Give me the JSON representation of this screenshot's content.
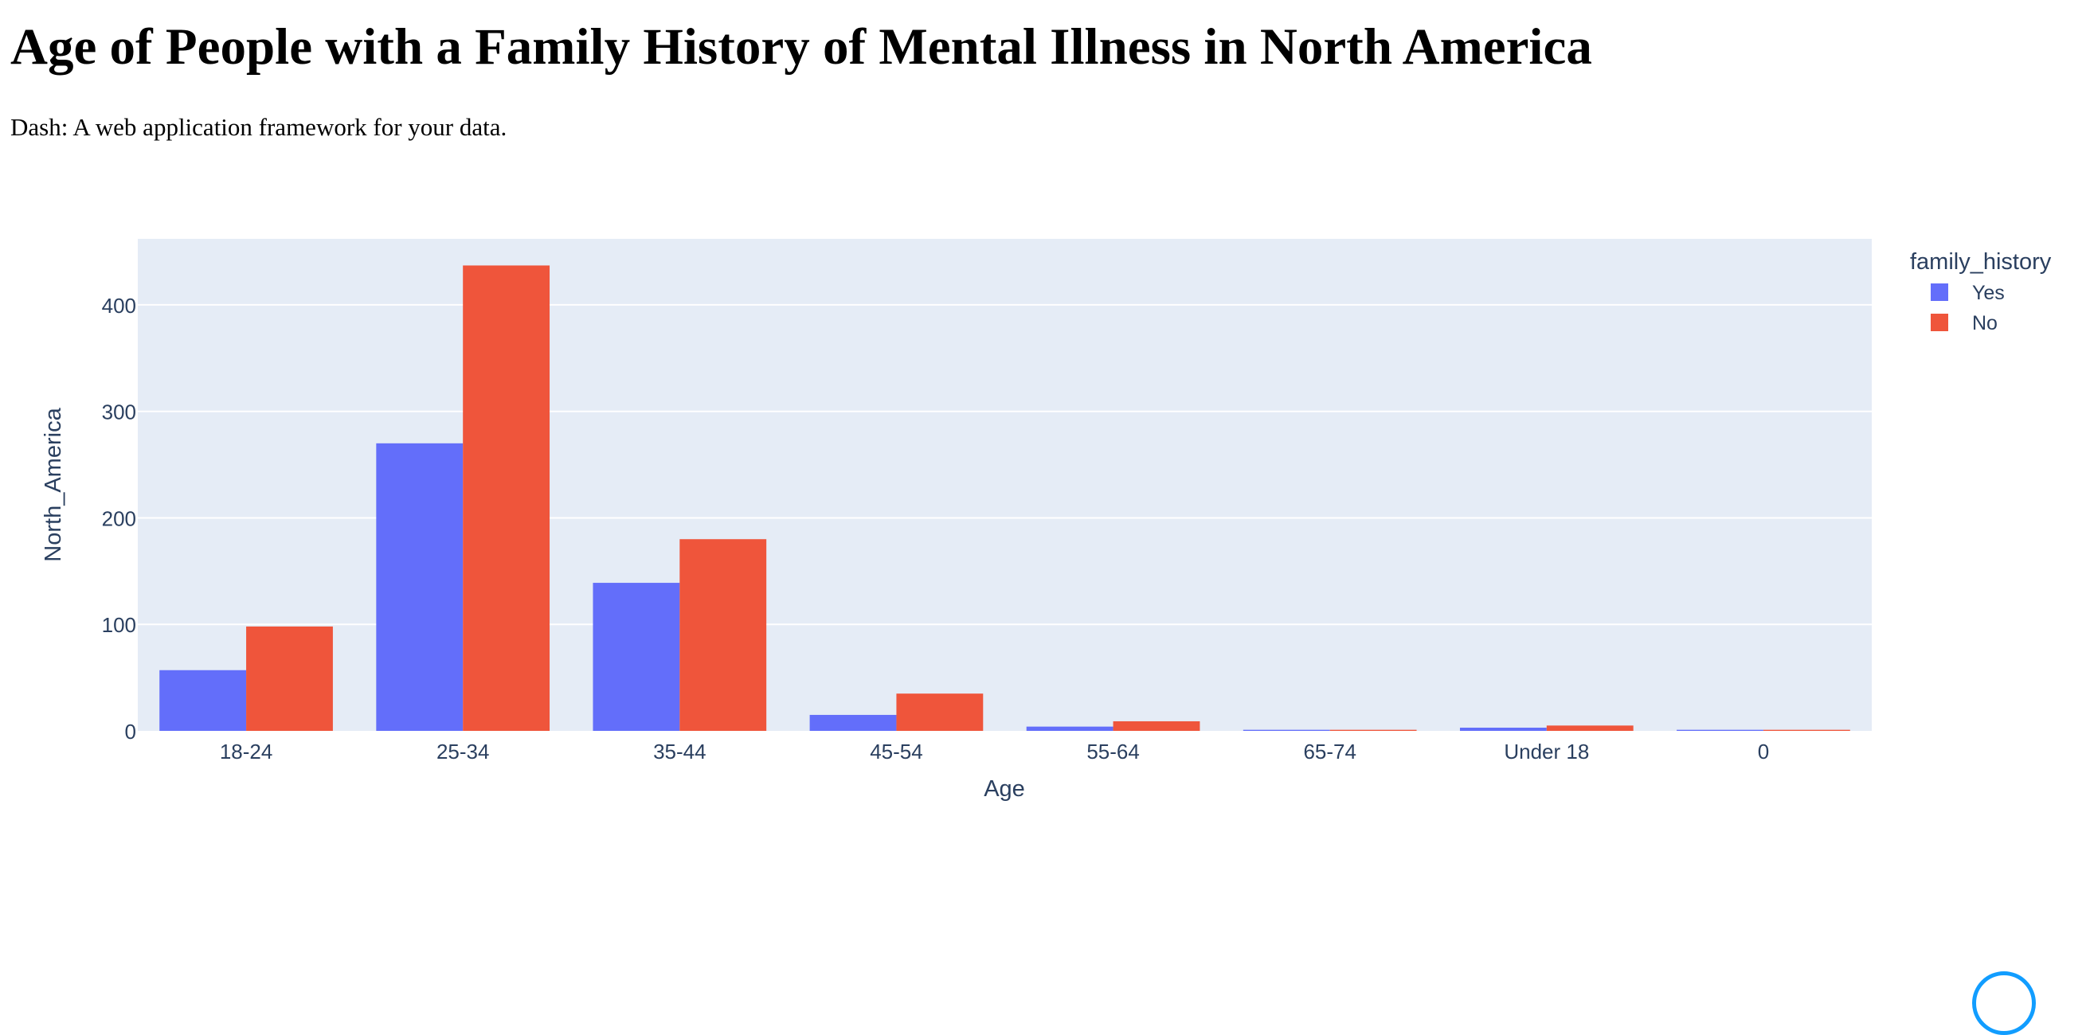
{
  "page": {
    "title": "Age of People with a Family History of Mental Illness in North America",
    "subtitle": "Dash: A web application framework for your data."
  },
  "chart_data": {
    "type": "bar",
    "barmode": "group",
    "title": "",
    "xlabel": "Age",
    "ylabel": "North_America",
    "ylim": [
      0,
      462
    ],
    "yticks": [
      0,
      100,
      200,
      300,
      400
    ],
    "grid": true,
    "legend": {
      "title": "family_history",
      "placement": "top-right"
    },
    "categories": [
      "18-24",
      "25-34",
      "35-44",
      "45-54",
      "55-64",
      "65-74",
      "Under 18",
      "0"
    ],
    "series": [
      {
        "name": "Yes",
        "color": "#636efa",
        "values": [
          57,
          270,
          139,
          15,
          4,
          1,
          3,
          1
        ]
      },
      {
        "name": "No",
        "color": "#ef553b",
        "values": [
          98,
          437,
          180,
          35,
          9,
          1,
          5,
          1
        ]
      }
    ],
    "colors": {
      "plot_bg": "#e5ecf6",
      "grid": "#ffffff",
      "text": "#2a3f5f"
    }
  }
}
